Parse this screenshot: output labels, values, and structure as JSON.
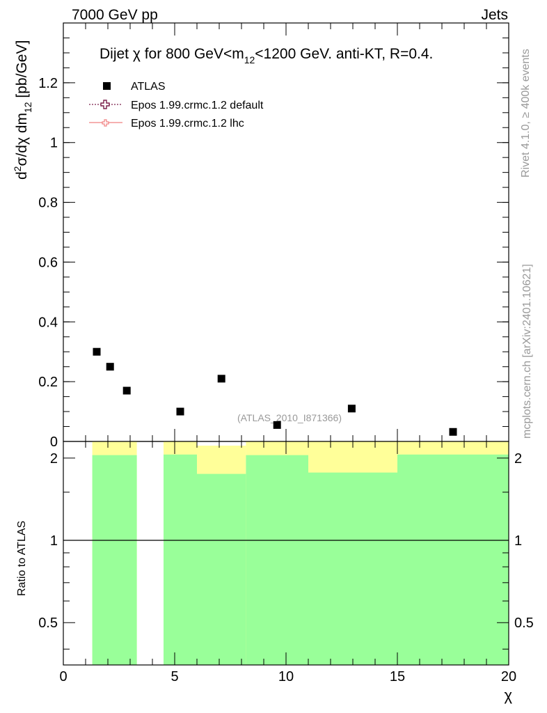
{
  "header": {
    "left": "7000 GeV pp",
    "right": "Jets"
  },
  "side_labels": {
    "rivet": "Rivet 4.1.0, ≥ 400k events",
    "mcplots": "mcplots.cern.ch [arXiv:2401.10621]"
  },
  "colors": {
    "data_marker": "#000000",
    "mc_default": "#7b1f4a",
    "mc_lhc": "#f08080",
    "band_yellow": "#ffff99",
    "band_green": "#99ff99"
  },
  "chart_data": [
    {
      "type": "scatter",
      "title": {
        "pre": "Dijet ",
        "chi": "χ",
        "mid": " for 800 GeV<m",
        "sub": "12",
        "post": "<1200 GeV.  anti-KT, R=0.4."
      },
      "ylabel": {
        "d": "d",
        "sup": "2",
        "body": "σ/dχ dm",
        "sub": "12",
        "unit": " [pb/GeV]"
      },
      "xlim": [
        0,
        20
      ],
      "ylim": [
        0,
        1.4
      ],
      "yticks": [
        0,
        0.2,
        0.4,
        0.6,
        0.8,
        1,
        1.2
      ],
      "ytick_labels": [
        "0",
        "0.2",
        "0.4",
        "0.6",
        "0.8",
        "1",
        "1.2"
      ],
      "watermark": "(ATLAS_2010_I871366)",
      "legend": [
        "ATLAS",
        "Epos 1.99.crmc.1.2 default",
        "Epos 1.99.crmc.1.2 lhc"
      ],
      "series": [
        {
          "name": "ATLAS",
          "x": [
            1.5,
            2.1,
            2.85,
            5.25,
            7.1,
            9.6,
            12.95,
            17.5
          ],
          "y": [
            0.3,
            0.25,
            0.17,
            0.1,
            0.21,
            0.055,
            0.11,
            0.032
          ]
        }
      ]
    },
    {
      "type": "area",
      "ylabel": "Ratio to ATLAS",
      "xlabel": "χ",
      "xlim": [
        0,
        20
      ],
      "ylim": [
        0.35,
        2.3
      ],
      "yticks": [
        0.5,
        1,
        2
      ],
      "ytick_labels": [
        "0.5",
        "1",
        "2"
      ],
      "xticks": [
        0,
        5,
        10,
        15,
        20
      ],
      "xtick_labels": [
        "0",
        "5",
        "10",
        "15",
        "20"
      ],
      "reference_line": 1,
      "bands": [
        {
          "x0": 1.3,
          "x1": 3.3,
          "green_top": 2.05,
          "yellow_top": 2.3
        },
        {
          "x0": 4.5,
          "x1": 6.0,
          "green_top": 2.06,
          "yellow_top": 2.3
        },
        {
          "x0": 6.0,
          "x1": 8.2,
          "green_top": 1.75,
          "yellow_top": 2.22
        },
        {
          "x0": 8.2,
          "x1": 11.0,
          "green_top": 2.05,
          "yellow_top": 2.3
        },
        {
          "x0": 11.0,
          "x1": 15.0,
          "green_top": 1.77,
          "yellow_top": 2.3
        },
        {
          "x0": 15.0,
          "x1": 20.0,
          "green_top": 2.06,
          "yellow_top": 2.3
        }
      ]
    }
  ]
}
